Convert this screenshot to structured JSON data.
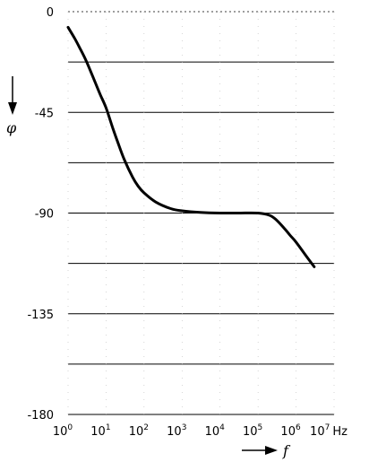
{
  "chart_data": {
    "type": "line",
    "title": "",
    "ylabel": "φ",
    "xlabel": "f",
    "x_unit": "Hz",
    "x_scale": "log",
    "xlim": [
      1,
      10000000
    ],
    "ylim": [
      -180,
      0
    ],
    "grid": "horizontal",
    "y_ticks": [
      {
        "value": 0,
        "label": "0"
      },
      {
        "value": -45,
        "label": "-45"
      },
      {
        "value": -90,
        "label": "-90"
      },
      {
        "value": -135,
        "label": "-135"
      },
      {
        "value": -180,
        "label": "-180"
      }
    ],
    "y_gridlines": [
      0,
      -22.5,
      -45,
      -67.5,
      -90,
      -112.5,
      -135,
      -157.5,
      -180
    ],
    "x_ticks": [
      {
        "value": 1,
        "base": "10",
        "exp": "0"
      },
      {
        "value": 10,
        "base": "10",
        "exp": "1"
      },
      {
        "value": 100,
        "base": "10",
        "exp": "2"
      },
      {
        "value": 1000,
        "base": "10",
        "exp": "3"
      },
      {
        "value": 10000,
        "base": "10",
        "exp": "4"
      },
      {
        "value": 100000,
        "base": "10",
        "exp": "5"
      },
      {
        "value": 1000000,
        "base": "10",
        "exp": "6"
      },
      {
        "value": 10000000,
        "base": "10",
        "exp": "7"
      }
    ],
    "series": [
      {
        "x": [
          1,
          1.5,
          2,
          3,
          5,
          7,
          10,
          15,
          20,
          30,
          50,
          70,
          100,
          200,
          500,
          1000,
          3000,
          10000,
          30000,
          100000,
          200000,
          300000,
          500000,
          700000,
          1000000,
          2000000,
          3000000
        ],
        "y": [
          -7,
          -12,
          -16,
          -22,
          -31,
          -37,
          -43,
          -52,
          -58,
          -66,
          -74,
          -78,
          -81,
          -85,
          -88,
          -89,
          -89.7,
          -90,
          -90,
          -90,
          -91,
          -93,
          -97,
          -100,
          -103,
          -110,
          -114
        ]
      }
    ]
  }
}
